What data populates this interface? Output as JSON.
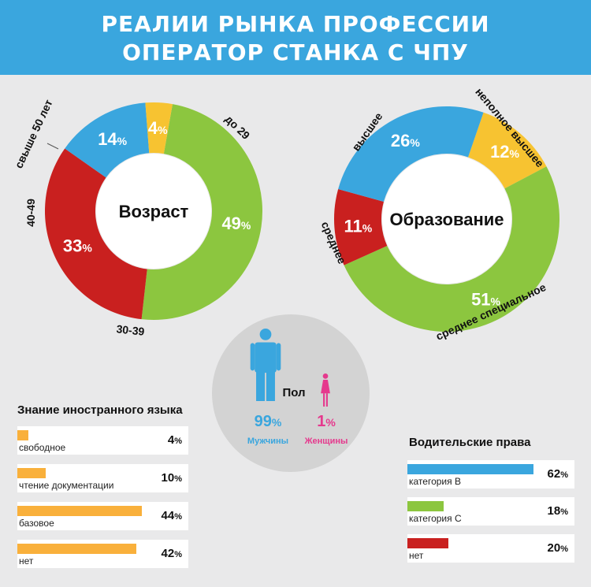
{
  "header": {
    "line1": "РЕАЛИИ РЫНКА ПРОФЕССИИ",
    "line2": "ОПЕРАТОР СТАНКА С ЧПУ"
  },
  "colors": {
    "blue": "#3aa6de",
    "green": "#8cc63f",
    "red": "#c9201f",
    "yellow": "#f7c331",
    "orange": "#f9b03b",
    "pink": "#e5398d",
    "circle": "#d3d3d3",
    "bg": "#e9e9ea"
  },
  "chart_data": [
    {
      "type": "pie",
      "title": "Возраст",
      "slices": [
        {
          "label": "до 29",
          "value": 49,
          "color": "#8cc63f"
        },
        {
          "label": "30-39",
          "value": 33,
          "color": "#c9201f"
        },
        {
          "label": "40-49",
          "value": 14,
          "color": "#3aa6de"
        },
        {
          "label": "свыше 50 лет",
          "value": 4,
          "color": "#f7c331"
        }
      ]
    },
    {
      "type": "pie",
      "title": "Образование",
      "slices": [
        {
          "label": "неполное высшее",
          "value": 12,
          "color": "#f7c331"
        },
        {
          "label": "среднее специальное",
          "value": 51,
          "color": "#8cc63f"
        },
        {
          "label": "среднее",
          "value": 11,
          "color": "#c9201f"
        },
        {
          "label": "высшее",
          "value": 26,
          "color": "#3aa6de"
        }
      ]
    },
    {
      "type": "bar",
      "title": "Знание иностранного языка",
      "categories": [
        "свободное",
        "чтение документации",
        "базовое",
        "нет"
      ],
      "values": [
        4,
        10,
        44,
        42
      ],
      "color": "#f9b03b"
    },
    {
      "type": "bar",
      "title": "Водительские права",
      "categories": [
        "категория B",
        "категория C",
        "нет"
      ],
      "values": [
        62,
        18,
        20
      ],
      "colors": [
        "#3aa6de",
        "#8cc63f",
        "#c9201f"
      ]
    },
    {
      "type": "table",
      "title": "Пол",
      "items": [
        {
          "label": "Мужчины",
          "value": 99,
          "color": "#3aa6de"
        },
        {
          "label": "Женщины",
          "value": 1,
          "color": "#e5398d"
        }
      ]
    }
  ]
}
